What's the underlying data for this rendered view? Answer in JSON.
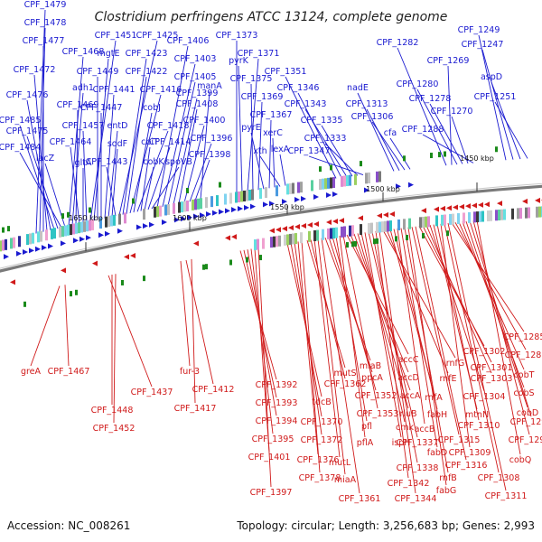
{
  "title": "Clostridium perfringens ATCC 13124, complete genome",
  "accession": "Accession: NC_008261",
  "topology": "Topology: circular; Length: 3,256,683 bp; Genes: 2,993",
  "colors": {
    "forward": "#1a1ad0",
    "reverse": "#d01a1a",
    "backbone": "#808080",
    "gc_skew": "#1a8a1a"
  },
  "kbp_ticks": [
    "1650 kbp",
    "1600 kbp",
    "1550 kbp",
    "1500 kbp",
    "1450 kbp"
  ],
  "top_labels": [
    "CPF_1479",
    "CPF_1478",
    "CPF_1477",
    "CPF_1472",
    "CPF_1476",
    "CPF_1485",
    "CPF_1475",
    "CPF_1484",
    "lacZ",
    "CPF_1468",
    "adh1",
    "CPF_1469",
    "CPF_1464",
    "gltA",
    "CPF_1457",
    "CPF_1451",
    "mgtE",
    "CPF_1449",
    "CPF_1447",
    "CPF_1441",
    "entD",
    "sodF",
    "CPF_1443",
    "CPF_1425",
    "CPF_1423",
    "CPF_1422",
    "CPF_1416",
    "cobJ",
    "CPF_1418",
    "cbiT",
    "cobK",
    "CPF_1414",
    "spoVB",
    "CPF_1406",
    "CPF_1403",
    "CPF_1405",
    "CPF_1399",
    "CPF_1408",
    "CPF_1400",
    "CPF_1396",
    "CPF_1398",
    "manA",
    "CPF_1373",
    "pyrK",
    "CPF_1371",
    "CPF_1375",
    "CPF_1369",
    "pyrE",
    "CPF_1367",
    "xerC",
    "xth",
    "lexA",
    "CPF_1351",
    "CPF_1346",
    "CPF_1343",
    "CPF_1335",
    "CPF_1333",
    "CPF_1347",
    "nadE",
    "CPF_1313",
    "CPF_1306",
    "cfa",
    "CPF_1282",
    "CPF_1269",
    "CPF_1280",
    "CPF_1278",
    "CPF_1270",
    "CPF_1288",
    "CPF_1249",
    "CPF_1247",
    "aspD",
    "CPF_1251"
  ],
  "bottom_labels": [
    "greA",
    "CPF_1467",
    "CPF_1437",
    "CPF_1448",
    "CPF_1452",
    "fur-3",
    "CPF_1412",
    "CPF_1417",
    "CPF_1392",
    "CPF_1393",
    "CPF_1394",
    "CPF_1395",
    "CPF_1401",
    "CPF_1397",
    "tdcB",
    "CPF_1370",
    "CPF_1372",
    "CPF_1376",
    "CPF_1378",
    "mutS",
    "CPF_1362",
    "mutL",
    "miaA",
    "CPF_1361",
    "miaB",
    "ppcA",
    "CPF_1352",
    "pfl",
    "pflA",
    "CPF_1353",
    "accC",
    "accD",
    "accA",
    "rluB",
    "cmk",
    "ispH",
    "CPF_1337",
    "CPF_1338",
    "CPF_1342",
    "CPF_1344",
    "rnfG",
    "rnfE",
    "rnfA",
    "fabH",
    "accB",
    "fabD",
    "rnfB",
    "fabG",
    "CPF_1315",
    "CPF_1316",
    "CPF_1302",
    "CPF_1301",
    "CPF_1303",
    "CPF_1304",
    "mtnN",
    "CPF_1310",
    "CPF_1309",
    "CPF_1308",
    "CPF_1311",
    "CPF_1285",
    "CPF_1287",
    "cobT",
    "cobS",
    "cobD",
    "CPF_1296",
    "CPF_1298",
    "cobQ"
  ]
}
